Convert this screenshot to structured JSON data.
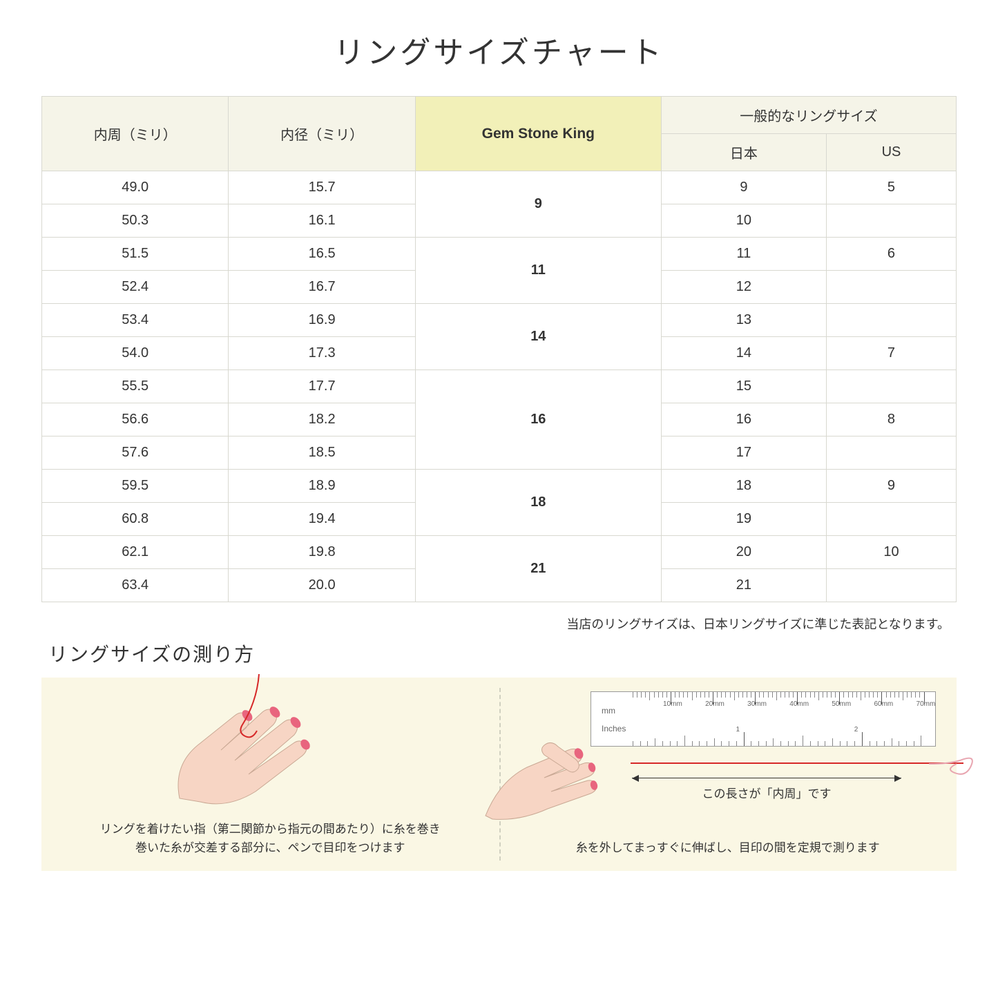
{
  "title": "リングサイズチャート",
  "headers": {
    "inner_circ": "内周（ミリ）",
    "inner_dia": "内径（ミリ）",
    "gsk": "Gem Stone King",
    "general": "一般的なリングサイズ",
    "japan": "日本",
    "us": "US"
  },
  "groups": [
    {
      "gsk": "9",
      "rows": [
        {
          "circ": "49.0",
          "dia": "15.7",
          "jp": "9",
          "us": "5"
        },
        {
          "circ": "50.3",
          "dia": "16.1",
          "jp": "10",
          "us": ""
        }
      ]
    },
    {
      "gsk": "11",
      "rows": [
        {
          "circ": "51.5",
          "dia": "16.5",
          "jp": "11",
          "us": "6"
        },
        {
          "circ": "52.4",
          "dia": "16.7",
          "jp": "12",
          "us": ""
        }
      ]
    },
    {
      "gsk": "14",
      "rows": [
        {
          "circ": "53.4",
          "dia": "16.9",
          "jp": "13",
          "us": ""
        },
        {
          "circ": "54.0",
          "dia": "17.3",
          "jp": "14",
          "us": "7"
        }
      ]
    },
    {
      "gsk": "16",
      "rows": [
        {
          "circ": "55.5",
          "dia": "17.7",
          "jp": "15",
          "us": ""
        },
        {
          "circ": "56.6",
          "dia": "18.2",
          "jp": "16",
          "us": "8"
        },
        {
          "circ": "57.6",
          "dia": "18.5",
          "jp": "17",
          "us": ""
        }
      ]
    },
    {
      "gsk": "18",
      "rows": [
        {
          "circ": "59.5",
          "dia": "18.9",
          "jp": "18",
          "us": "9"
        },
        {
          "circ": "60.8",
          "dia": "19.4",
          "jp": "19",
          "us": ""
        }
      ]
    },
    {
      "gsk": "21",
      "rows": [
        {
          "circ": "62.1",
          "dia": "19.8",
          "jp": "20",
          "us": "10"
        },
        {
          "circ": "63.4",
          "dia": "20.0",
          "jp": "21",
          "us": ""
        }
      ]
    }
  ],
  "table_note": "当店のリングサイズは、日本リングサイズに準じた表記となります。",
  "measure_title": "リングサイズの測り方",
  "instruction_left_1": "リングを着けたい指（第二関節から指元の間あたり）に糸を巻き",
  "instruction_left_2": "巻いた糸が交差する部分に、ペンで目印をつけます",
  "instruction_right": "糸を外してまっすぐに伸ばし、目印の間を定規で測ります",
  "arrow_label": "この長さが「内周」です",
  "ruler": {
    "mm_label": "mm",
    "in_label": "Inches",
    "mm_ticks": [
      "10mm",
      "20mm",
      "30mm",
      "40mm",
      "50mm",
      "60mm",
      "70mm"
    ],
    "in_ticks": [
      "1",
      "2"
    ]
  },
  "colors": {
    "header_bg": "#f5f4e8",
    "gsk_bg": "#f2f0b8",
    "panel_bg": "#faf7e4",
    "skin": "#f7d5c4",
    "nail": "#e8657e",
    "thread": "#d62828"
  }
}
